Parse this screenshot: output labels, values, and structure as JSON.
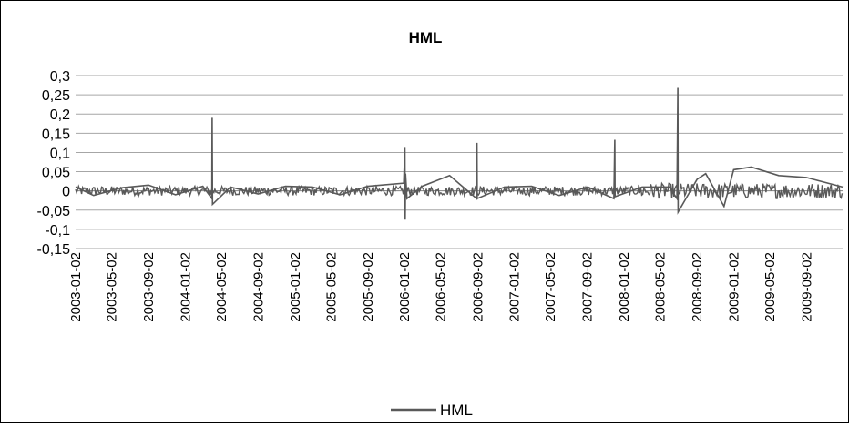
{
  "chart_data": {
    "type": "line",
    "title": "HML",
    "xlabel": "",
    "ylabel": "",
    "ylim": [
      -0.15,
      0.3
    ],
    "yticks": [
      -0.15,
      -0.1,
      -0.05,
      0,
      0.05,
      0.1,
      0.15,
      0.2,
      0.25,
      0.3
    ],
    "ytick_labels": [
      "-0,15",
      "-0,1",
      "-0,05",
      "0",
      "0,05",
      "0,1",
      "0,15",
      "0,2",
      "0,25",
      "0,3"
    ],
    "xlim": [
      "2003-01-02",
      "2009-12-31"
    ],
    "x_tick_labels": [
      "2003-01-02",
      "2003-05-02",
      "2003-09-02",
      "2004-01-02",
      "2004-05-02",
      "2004-09-02",
      "2005-01-02",
      "2005-05-02",
      "2005-09-02",
      "2006-01-02",
      "2006-05-02",
      "2006-09-02",
      "2007-01-02",
      "2007-05-02",
      "2007-09-02",
      "2008-01-02",
      "2008-05-02",
      "2008-09-02",
      "2009-01-02",
      "2009-05-02",
      "2009-09-02"
    ],
    "grid": "horizontal",
    "legend_position": "bottom",
    "color": "#595959",
    "series": [
      {
        "name": "HML",
        "x": [
          "2003-01-02",
          "2003-03-03",
          "2003-06-02",
          "2003-09-02",
          "2003-12-01",
          "2004-03-01",
          "2004-03-31",
          "2004-04-01",
          "2004-04-02",
          "2004-06-01",
          "2004-09-01",
          "2004-12-01",
          "2005-03-01",
          "2005-06-01",
          "2005-09-01",
          "2005-12-30",
          "2006-01-03",
          "2006-01-04",
          "2006-01-05",
          "2006-01-10",
          "2006-03-01",
          "2006-06-01",
          "2006-08-30",
          "2006-08-31",
          "2006-09-01",
          "2006-12-01",
          "2007-03-01",
          "2007-06-01",
          "2007-09-04",
          "2007-11-30",
          "2007-12-03",
          "2007-12-04",
          "2008-03-03",
          "2008-06-02",
          "2008-06-27",
          "2008-06-30",
          "2008-07-01",
          "2008-09-02",
          "2008-10-01",
          "2008-12-01",
          "2009-01-02",
          "2009-03-02",
          "2009-06-01",
          "2009-09-01",
          "2009-12-31"
        ],
        "values": [
          0.01,
          -0.012,
          0.008,
          0.015,
          -0.01,
          0.012,
          -0.02,
          0.19,
          -0.035,
          0.01,
          -0.008,
          0.012,
          0.01,
          -0.01,
          0.012,
          0.02,
          0.112,
          -0.075,
          0.045,
          -0.02,
          0.012,
          0.04,
          -0.02,
          0.125,
          -0.02,
          0.01,
          0.012,
          -0.012,
          0.01,
          -0.02,
          0.133,
          -0.015,
          0.01,
          0.01,
          -0.02,
          0.268,
          -0.055,
          0.03,
          0.045,
          -0.04,
          0.055,
          0.062,
          0.04,
          0.035,
          0.01
        ]
      }
    ]
  }
}
